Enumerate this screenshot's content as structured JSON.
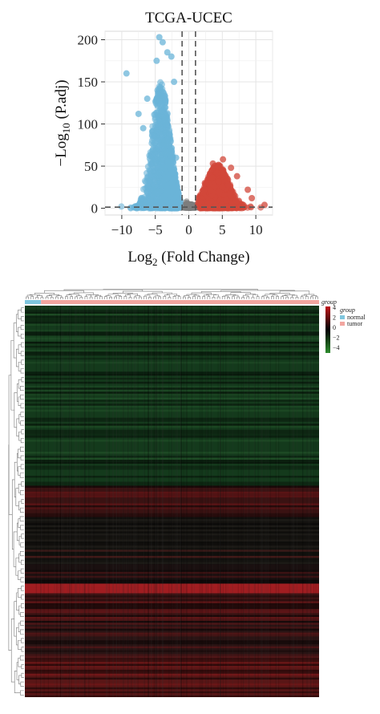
{
  "chart_data": [
    {
      "type": "scatter",
      "title": "TCGA-UCEC",
      "xlabel_parts": {
        "base": "Log",
        "sub": "2",
        "rest": " (Fold Change)"
      },
      "ylabel_parts": {
        "base": "−Log",
        "sub": "10",
        "rest": " (P.adj)"
      },
      "xlim": [
        -12.5,
        12.5
      ],
      "ylim": [
        -8,
        210
      ],
      "x_ticks": [
        -10,
        -5,
        0,
        5,
        10
      ],
      "y_ticks": [
        0,
        50,
        100,
        150,
        200
      ],
      "x_tick_labels": [
        "−10",
        "−5",
        "0",
        "5",
        "10"
      ],
      "y_tick_labels": [
        "0",
        "50",
        "100",
        "150",
        "200"
      ],
      "grid": true,
      "threshold_x": [
        -1,
        1
      ],
      "threshold_y": 1.3,
      "series": [
        {
          "group": "down",
          "color": "#6ab4d8",
          "highlight_points": [
            [
              -9.3,
              160
            ],
            [
              -4.4,
              203
            ],
            [
              -3.9,
              197
            ],
            [
              -3.2,
              185
            ],
            [
              -4.8,
              175
            ],
            [
              -2.6,
              180
            ],
            [
              -6.2,
              130
            ],
            [
              -7.5,
              112
            ],
            [
              -6.8,
              95
            ],
            [
              -2.2,
              150
            ],
            [
              -1.9,
              60
            ]
          ]
        },
        {
          "group": "up",
          "color": "#d2473a",
          "highlight_points": [
            [
              5.1,
              58
            ],
            [
              3.6,
              53
            ],
            [
              6.3,
              48
            ],
            [
              7.2,
              38
            ],
            [
              8.8,
              22
            ],
            [
              9.4,
              12
            ],
            [
              11.3,
              4
            ],
            [
              2.4,
              30
            ],
            [
              4.2,
              42
            ],
            [
              1.8,
              12
            ]
          ]
        },
        {
          "group": "ns",
          "color": "#7d7d7d",
          "highlight_points": []
        }
      ]
    },
    {
      "type": "heatmap",
      "legend": {
        "scale_values": [
          "4",
          "2",
          "0",
          "−2",
          "−4"
        ],
        "scale_colors": [
          "#c0141a",
          "#000000",
          "#2e8b2e"
        ],
        "group_title": "group",
        "groups": [
          {
            "name": "normal",
            "color": "#7fc6de"
          },
          {
            "name": "tumor",
            "color": "#f2a6a0"
          }
        ]
      },
      "annotation_label": "group",
      "column_groups": [
        {
          "name": "normal",
          "fraction": 0.055
        },
        {
          "name": "tumor",
          "fraction": 0.945
        }
      ],
      "row_bands": [
        {
          "rows": 0.46,
          "color": "#143a1c"
        },
        {
          "rows": 0.08,
          "color": "#3a1212"
        },
        {
          "rows": 0.12,
          "color": "#1c1a16"
        },
        {
          "rows": 0.05,
          "color": "#1a1010"
        },
        {
          "rows": 0.025,
          "color": "#a11e22"
        },
        {
          "rows": 0.065,
          "color": "#3e1414"
        },
        {
          "rows": 0.1,
          "color": "#2a1414"
        },
        {
          "rows": 0.1,
          "color": "#5a1616"
        }
      ]
    }
  ]
}
